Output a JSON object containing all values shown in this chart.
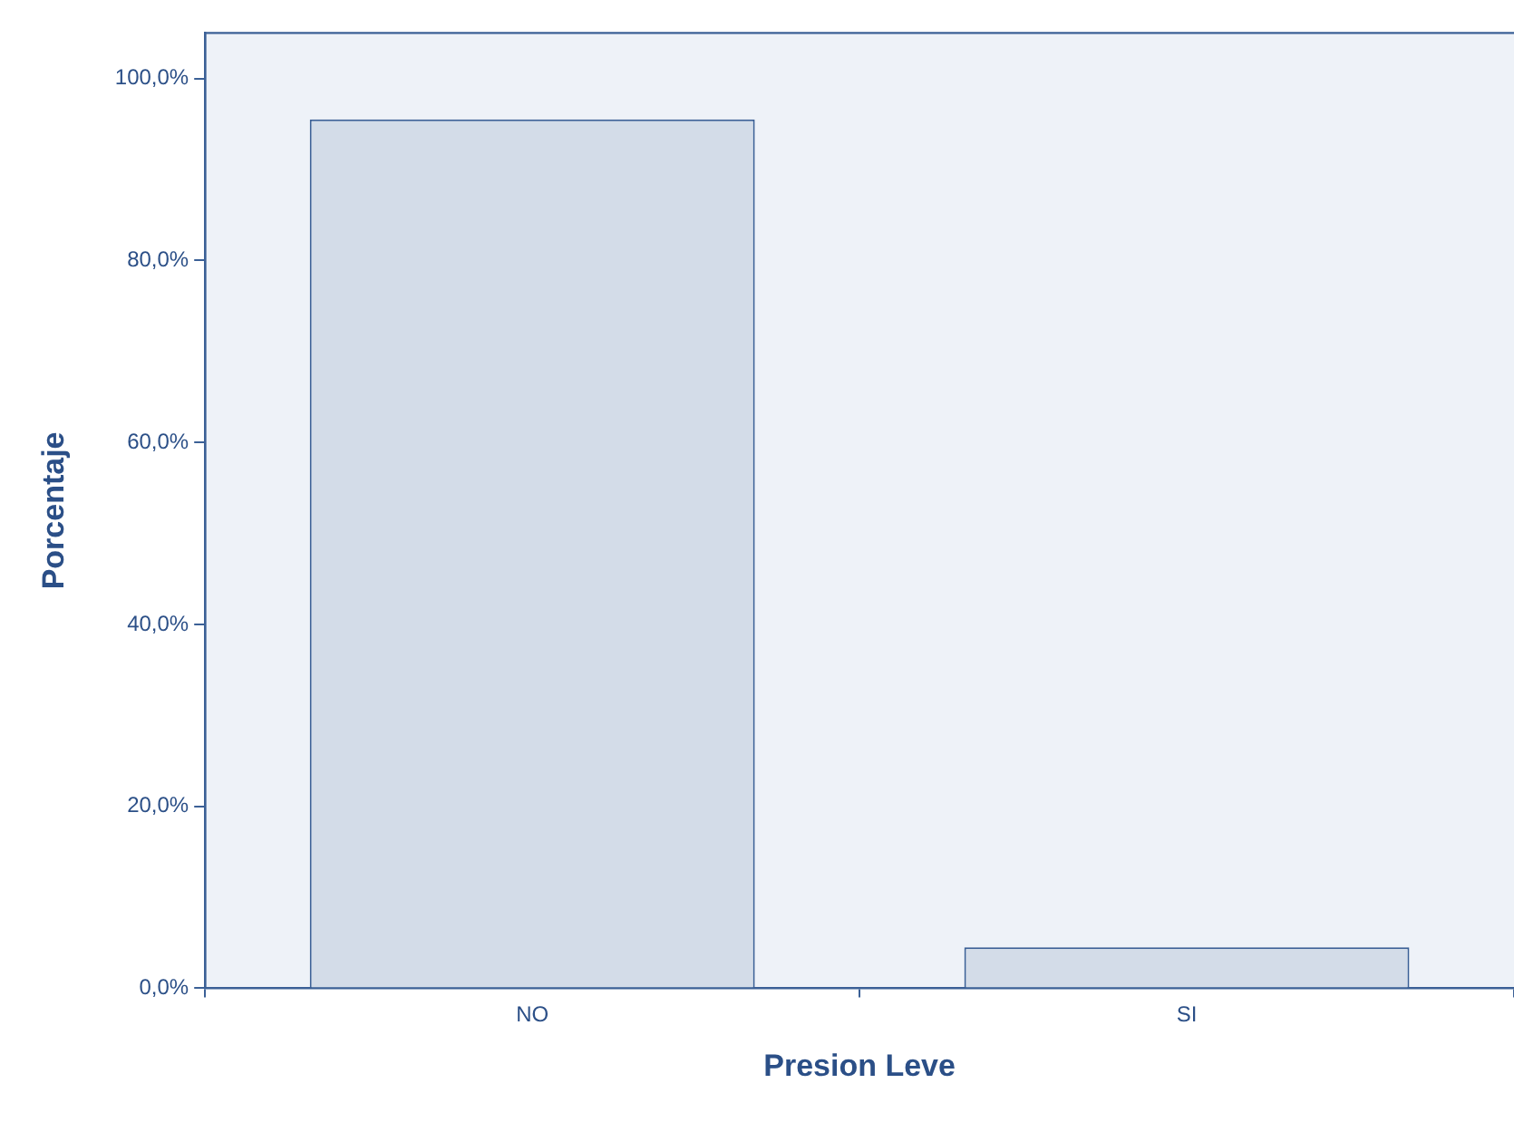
{
  "chart_data": {
    "type": "bar",
    "xlabel": "Presion Leve",
    "ylabel": "Porcentaje",
    "categories": [
      "NO",
      "SI"
    ],
    "values": [
      95.5,
      4.5
    ],
    "color": "#d3dce8",
    "ylim": [
      0,
      105
    ],
    "yticks": [
      {
        "value": 0,
        "label": "0,0%"
      },
      {
        "value": 20,
        "label": "20,0%"
      },
      {
        "value": 40,
        "label": "40,0%"
      },
      {
        "value": 60,
        "label": "60,0%"
      },
      {
        "value": 80,
        "label": "80,0%"
      },
      {
        "value": 100,
        "label": "100,0%"
      }
    ],
    "grid": false,
    "legend": false
  }
}
